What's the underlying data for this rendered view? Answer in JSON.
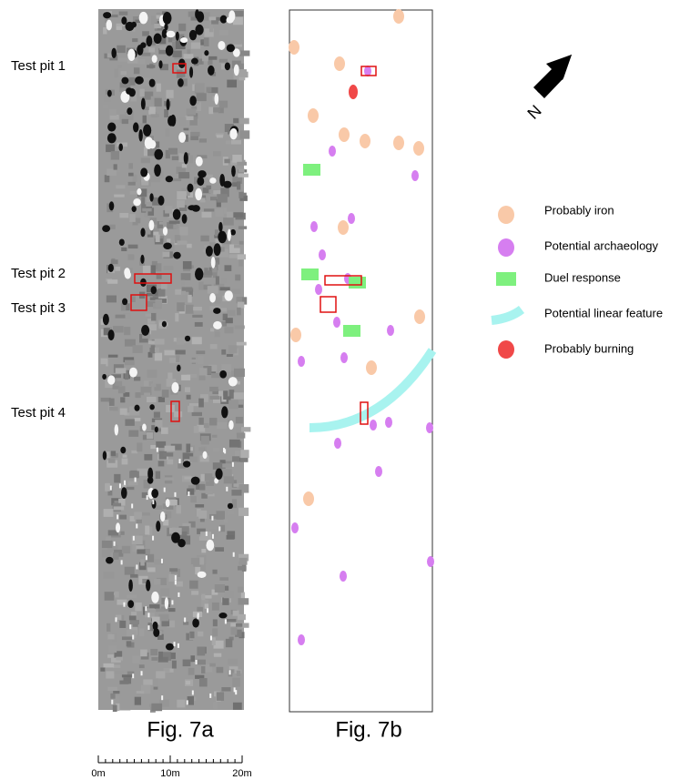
{
  "figure_a": {
    "caption": "Fig. 7a",
    "test_pits": [
      "Test pit 1",
      "Test pit 2",
      "Test pit 3",
      "Test pit 4"
    ]
  },
  "figure_b": {
    "caption": "Fig. 7b"
  },
  "legend": [
    "Probably iron",
    "Potential archaeology",
    "Duel response",
    "Potential linear feature",
    "Probably burning"
  ],
  "north_label": "N",
  "scale_bar": {
    "labels": [
      "0m",
      "10m",
      "20m"
    ]
  }
}
